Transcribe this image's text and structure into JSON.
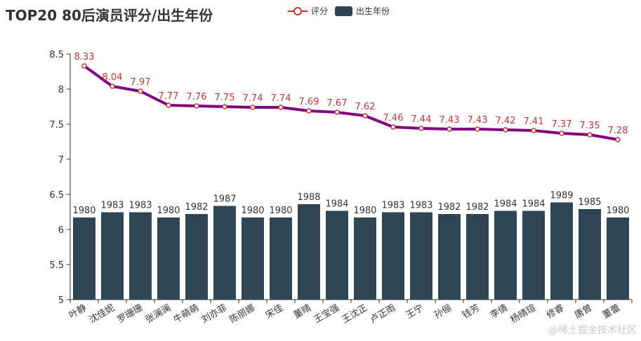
{
  "title": "TOP20 80后演员评分/出生年份",
  "legend": {
    "line_label": "评分",
    "bar_label": "出生年份"
  },
  "colors": {
    "bar": "#2f4554",
    "line": "#800080",
    "line_point_border": "#c23531",
    "line_label": "#c23531",
    "bar_label": "#333333",
    "axis": "#333333"
  },
  "watermark": "@稀土掘金技术社区",
  "chart_data": {
    "type": "bar+line",
    "title": "TOP20 80后演员评分/出生年份",
    "categories": [
      "叶静",
      "沈佳妮",
      "罗珊珊",
      "张澜澜",
      "牛萌萌",
      "刘亦菲",
      "陈丽娜",
      "宋佳",
      "董晴",
      "王宝强",
      "王沈正",
      "卢正雨",
      "王宁",
      "孙俪",
      "钱芳",
      "李倩",
      "杨晴瑄",
      "修睿",
      "唐曾",
      "董蕾"
    ],
    "series": [
      {
        "name": "评分",
        "type": "line",
        "values": [
          8.33,
          8.04,
          7.97,
          7.77,
          7.76,
          7.75,
          7.74,
          7.74,
          7.69,
          7.67,
          7.62,
          7.46,
          7.44,
          7.43,
          7.43,
          7.42,
          7.41,
          7.37,
          7.35,
          7.28
        ]
      },
      {
        "name": "出生年份",
        "type": "bar",
        "values": [
          1980,
          1983,
          1983,
          1980,
          1982,
          1987,
          1980,
          1980,
          1988,
          1984,
          1980,
          1983,
          1983,
          1982,
          1982,
          1984,
          1984,
          1989,
          1985,
          1980
        ]
      }
    ],
    "bar_display_values": [
      6.17,
      6.245,
      6.245,
      6.17,
      6.22,
      6.335,
      6.17,
      6.17,
      6.36,
      6.265,
      6.17,
      6.245,
      6.245,
      6.22,
      6.22,
      6.265,
      6.265,
      6.385,
      6.29,
      6.17
    ],
    "ylim": [
      5,
      8.5
    ],
    "yticks": [
      5,
      5.5,
      6,
      6.5,
      7,
      7.5,
      8,
      8.5
    ],
    "ytick_labels": [
      "5",
      "5.5",
      "6",
      "6.5",
      "7",
      "7.5",
      "8",
      "8.5"
    ],
    "xlabel": "",
    "ylabel": ""
  }
}
